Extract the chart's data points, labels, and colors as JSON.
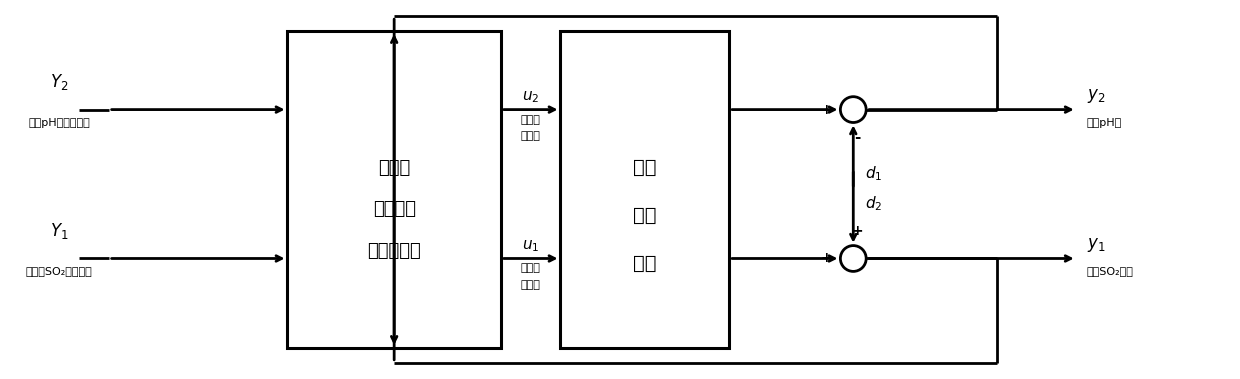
{
  "bg_color": "#ffffff",
  "fig_width": 12.4,
  "fig_height": 3.79,
  "dpi": 100,
  "controller_lines": [
    "多变量",
    "约束区间",
    "预测控制器"
  ],
  "plant_lines": [
    "氨法",
    "脲硫",
    "系统"
  ],
  "label_Y1": "$Y_1$",
  "label_Y1_sub": "脲硫后SO₂浓度定値",
  "label_Y2": "$Y_2$",
  "label_Y2_sub": "浆液pH値最佳范围",
  "label_u1": "$u_1$",
  "label_u1_sub1": "吸收段",
  "label_u1_sub2": "喷氨量",
  "label_u2": "$u_2$",
  "label_u2_sub1": "氧化段",
  "label_u2_sub2": "喷氨量",
  "label_y1": "$y_1$",
  "label_y1_sub": "出口SO₂浓度",
  "label_y2": "$y_2$",
  "label_y2_sub": "浆液pH値",
  "label_d1": "$d_1$",
  "label_d2": "$d_2$"
}
